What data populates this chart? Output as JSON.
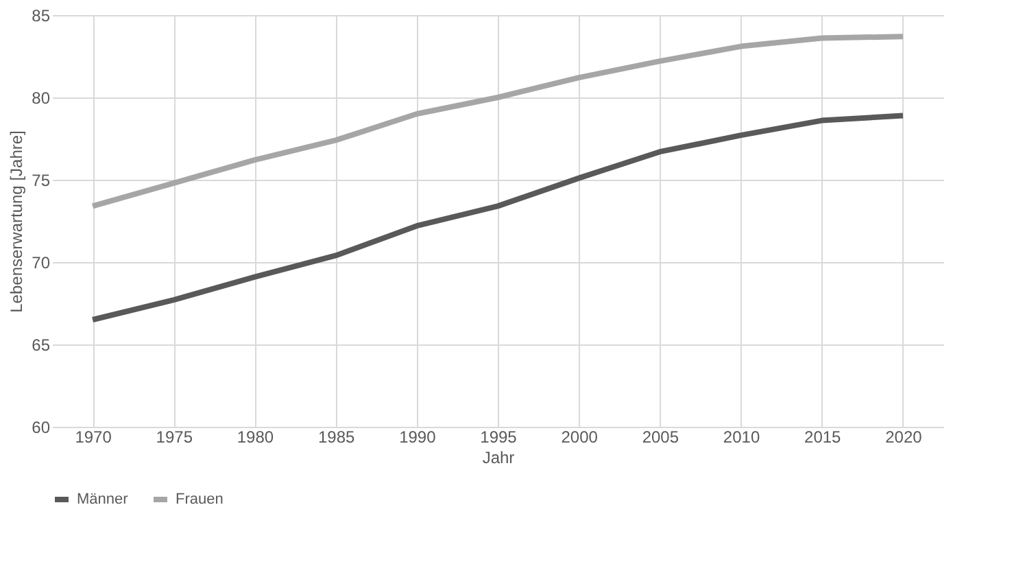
{
  "chart_data": {
    "type": "line",
    "xlabel": "Jahr",
    "ylabel": "Lebenserwartung [Jahre]",
    "categories": [
      "1970",
      "1975",
      "1980",
      "1985",
      "1990",
      "1995",
      "2000",
      "2005",
      "2010",
      "2015",
      "2020"
    ],
    "series": [
      {
        "name": "Männer",
        "color": "#595959",
        "values": [
          66.5,
          67.7,
          69.1,
          70.4,
          72.2,
          73.4,
          75.1,
          76.7,
          77.7,
          78.6,
          78.9
        ]
      },
      {
        "name": "Frauen",
        "color": "#a6a6a6",
        "values": [
          73.4,
          74.8,
          76.2,
          77.4,
          79.0,
          80.0,
          81.2,
          82.2,
          83.1,
          83.6,
          83.7
        ]
      }
    ],
    "ylim": [
      60,
      85
    ],
    "yticks": [
      60,
      65,
      70,
      75,
      80,
      85
    ],
    "grid": true,
    "legend": "bottom",
    "marker": "none",
    "line_style": "solid"
  }
}
